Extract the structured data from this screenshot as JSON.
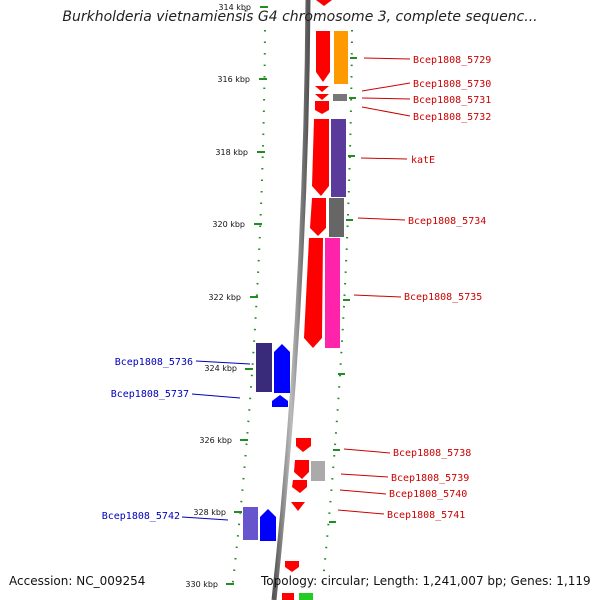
{
  "title": "Burkholderia vietnamiensis G4 chromosome 3, complete sequenc...",
  "footer": {
    "accession": "Accession: NC_009254",
    "topology": "Topology: circular; Length: 1,241,007 bp; Genes: 1,119"
  },
  "scale_ticks": [
    "314 kbp",
    "316 kbp",
    "318 kbp",
    "320 kbp",
    "322 kbp",
    "324 kbp",
    "326 kbp",
    "328 kbp",
    "330 kbp"
  ],
  "genes": [
    {
      "id": "g5729",
      "label": "Bcep1808_5729",
      "strand": "+",
      "color": "#ff0000",
      "cog_color": "#ff9900"
    },
    {
      "id": "g5730",
      "label": "Bcep1808_5730",
      "strand": "+",
      "color": "#ff0000",
      "cog_color": ""
    },
    {
      "id": "g5731",
      "label": "Bcep1808_5731",
      "strand": "+",
      "color": "#ff0000",
      "cog_color": "#777777"
    },
    {
      "id": "g5732",
      "label": "Bcep1808_5732",
      "strand": "+",
      "color": "#ff0000",
      "cog_color": ""
    },
    {
      "id": "gkatE",
      "label": "katE",
      "strand": "+",
      "color": "#ff0000",
      "cog_color": "#5a3a9a"
    },
    {
      "id": "g5734",
      "label": "Bcep1808_5734",
      "strand": "+",
      "color": "#ff0000",
      "cog_color": "#666666"
    },
    {
      "id": "g5735",
      "label": "Bcep1808_5735",
      "strand": "+",
      "color": "#ff0000",
      "cog_color": "#ff22aa"
    },
    {
      "id": "g5736",
      "label": "Bcep1808_5736",
      "strand": "-",
      "color": "#0000ff",
      "cog_color": "#3a2a7a"
    },
    {
      "id": "g5737",
      "label": "Bcep1808_5737",
      "strand": "-",
      "color": "#0000ff",
      "cog_color": ""
    },
    {
      "id": "g5738",
      "label": "Bcep1808_5738",
      "strand": "+",
      "color": "#ff0000",
      "cog_color": ""
    },
    {
      "id": "g5739",
      "label": "Bcep1808_5739",
      "strand": "+",
      "color": "#ff0000",
      "cog_color": "#aaaaaa"
    },
    {
      "id": "g5740",
      "label": "Bcep1808_5740",
      "strand": "+",
      "color": "#ff0000",
      "cog_color": ""
    },
    {
      "id": "g5741",
      "label": "Bcep1808_5741",
      "strand": "+",
      "color": "#ff0000",
      "cog_color": ""
    },
    {
      "id": "g5742",
      "label": "Bcep1808_5742",
      "strand": "-",
      "color": "#0000ff",
      "cog_color": "#6655cc"
    }
  ],
  "colors": {
    "backbone": "#888888",
    "scale": "#228b22",
    "forward_strand": "#ff0000",
    "reverse_strand": "#0000ff",
    "forward_label": "#cc0000",
    "reverse_label": "#0000bb"
  }
}
